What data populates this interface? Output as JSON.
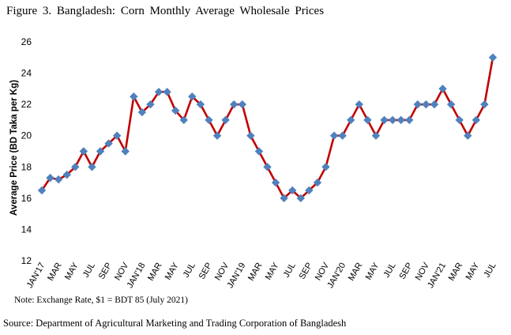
{
  "figure_title": "Figure 3. Bangladesh: Corn Monthly Average Wholesale Prices",
  "note": "Note: Exchange Rate, $1 = BDT 85 (July 2021)",
  "source": "Source: Department of Agricultural Marketing and Trading Corporation of Bangladesh",
  "colors": {
    "line": "#c00000",
    "marker": "#4f81bd"
  },
  "chart_data": {
    "type": "line",
    "title": "Figure 3. Bangladesh: Corn Monthly Average Wholesale Prices",
    "xlabel": "",
    "ylabel": "Average Price (BD Taka per Kg)",
    "ylim": [
      12,
      26
    ],
    "yticks": [
      12,
      14,
      16,
      18,
      20,
      22,
      24,
      26
    ],
    "grid": false,
    "x_labels": [
      "JAN'17",
      "MAR",
      "MAY",
      "JUL",
      "SEP",
      "NOV",
      "JAN'18",
      "MAR",
      "MAY",
      "JUL",
      "SEP",
      "NOV",
      "JAN'19",
      "MAR",
      "MAY",
      "JUL",
      "SEP",
      "NOV",
      "JAN'20",
      "MAR",
      "MAY",
      "JUL",
      "SEP",
      "NOV",
      "JAN'21",
      "MAR",
      "MAY",
      "JUL"
    ],
    "series": [
      {
        "name": "Corn wholesale price",
        "values": [
          16.5,
          17.3,
          17.2,
          17.5,
          18.0,
          19.0,
          18.0,
          19.0,
          19.5,
          20.0,
          19.0,
          22.5,
          21.5,
          22.0,
          22.8,
          22.8,
          21.6,
          21.0,
          22.5,
          22.0,
          21.0,
          20.0,
          21.0,
          22.0,
          22.0,
          20.0,
          19.0,
          18.0,
          17.0,
          16.0,
          16.5,
          16.0,
          16.5,
          17.0,
          18.0,
          20.0,
          20.0,
          21.0,
          22.0,
          21.0,
          20.0,
          21.0,
          21.0,
          21.0,
          21.0,
          22.0,
          22.0,
          22.0,
          23.0,
          22.0,
          21.0,
          20.0,
          21.0,
          22.0,
          25.0
        ]
      }
    ]
  }
}
